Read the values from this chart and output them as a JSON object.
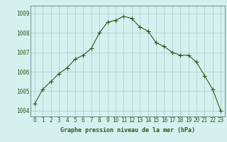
{
  "x": [
    0,
    1,
    2,
    3,
    4,
    5,
    6,
    7,
    8,
    9,
    10,
    11,
    12,
    13,
    14,
    15,
    16,
    17,
    18,
    19,
    20,
    21,
    22,
    23
  ],
  "y": [
    1004.35,
    1005.1,
    1005.5,
    1005.9,
    1006.2,
    1006.65,
    1006.85,
    1007.2,
    1008.0,
    1008.55,
    1008.65,
    1008.85,
    1008.75,
    1008.3,
    1008.1,
    1007.5,
    1007.3,
    1007.0,
    1006.85,
    1006.85,
    1006.5,
    1005.8,
    1005.1,
    1004.0
  ],
  "line_color": "#2d5a1b",
  "marker": "+",
  "marker_size": 4,
  "bg_color": "#d6f0f0",
  "grid_color": "#b0d0d0",
  "ylabel_ticks": [
    1004,
    1005,
    1006,
    1007,
    1008,
    1009
  ],
  "xlabel_label": "Graphe pression niveau de la mer (hPa)",
  "ylim": [
    1003.7,
    1009.4
  ],
  "xlim": [
    -0.5,
    23.5
  ],
  "tick_fontsize": 5.5,
  "label_fontsize": 6.0
}
